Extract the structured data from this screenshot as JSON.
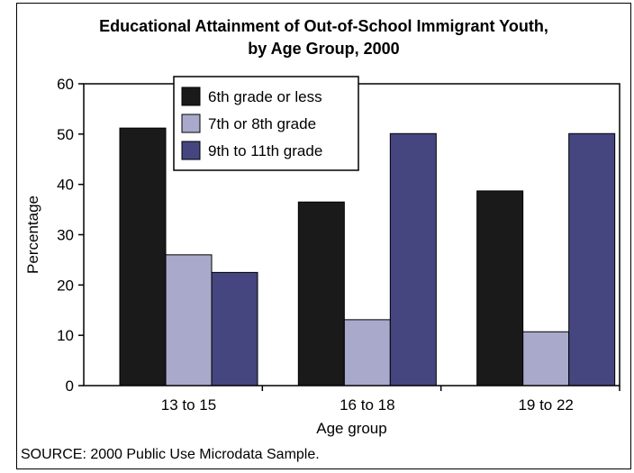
{
  "chart_data": {
    "type": "bar",
    "title_line1": "Educational Attainment of Out-of-School Immigrant Youth,",
    "title_line2": "by Age Group, 2000",
    "xlabel": "Age group",
    "ylabel": "Percentage",
    "ylim": [
      0,
      60
    ],
    "yticks": [
      "0",
      "10",
      "20",
      "30",
      "40",
      "50",
      "60"
    ],
    "categories": [
      "13 to 15",
      "16 to 18",
      "19 to 22"
    ],
    "series": [
      {
        "name": "6th grade or less",
        "color": "#1a1a1a",
        "values": [
          51.2,
          36.5,
          38.7
        ]
      },
      {
        "name": "7th or 8th grade",
        "color": "#a9a9cc",
        "values": [
          26.0,
          13.1,
          10.7
        ]
      },
      {
        "name": "9th to 11th grade",
        "color": "#45457f",
        "values": [
          22.5,
          50.1,
          50.1
        ]
      }
    ],
    "legend_position": "top-left",
    "grid": false
  },
  "source_note": "SOURCE:  2000 Public Use Microdata Sample."
}
